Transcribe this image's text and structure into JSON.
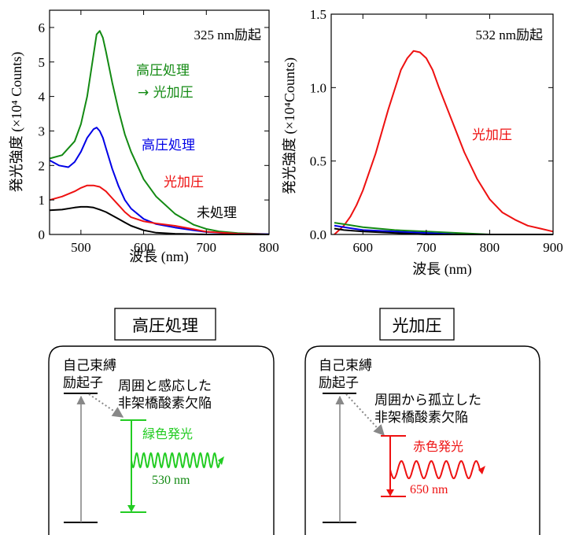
{
  "colors": {
    "green": "#138a13",
    "blue": "#0000e6",
    "red": "#ee1111",
    "black": "#000000",
    "bright_green": "#22cc22",
    "gray": "#888888"
  },
  "chart_data": [
    {
      "type": "line",
      "annotation": "325 nm励起",
      "xlabel": "波長 (nm)",
      "ylabel": "発光強度 (×10⁴ Counts)",
      "xlim": [
        450,
        800
      ],
      "ylim": [
        0,
        6.5
      ],
      "xticks": [
        500,
        600,
        700,
        800
      ],
      "yticks": [
        0,
        1,
        2,
        3,
        4,
        5,
        6
      ],
      "series": [
        {
          "name": "高圧処理 → 光加圧",
          "color": "#138a13",
          "x": [
            450,
            470,
            490,
            500,
            510,
            520,
            525,
            530,
            535,
            540,
            550,
            560,
            570,
            580,
            600,
            620,
            650,
            680,
            700,
            720,
            750,
            780,
            800
          ],
          "y": [
            2.2,
            2.3,
            2.7,
            3.2,
            4.0,
            5.2,
            5.8,
            5.9,
            5.7,
            5.3,
            4.4,
            3.6,
            2.9,
            2.4,
            1.6,
            1.1,
            0.6,
            0.28,
            0.16,
            0.09,
            0.04,
            0.02,
            0.01
          ]
        },
        {
          "name": "高圧処理",
          "color": "#0000e6",
          "x": [
            450,
            465,
            480,
            490,
            500,
            510,
            520,
            525,
            530,
            535,
            540,
            550,
            560,
            570,
            580,
            600,
            620,
            650,
            680,
            700,
            750,
            800
          ],
          "y": [
            2.15,
            2.0,
            1.95,
            2.1,
            2.4,
            2.8,
            3.05,
            3.1,
            3.0,
            2.8,
            2.5,
            1.9,
            1.4,
            1.0,
            0.75,
            0.45,
            0.3,
            0.2,
            0.12,
            0.07,
            0.02,
            0.01
          ]
        },
        {
          "name": "光加圧",
          "color": "#ee1111",
          "x": [
            450,
            470,
            490,
            500,
            510,
            520,
            530,
            540,
            550,
            560,
            570,
            580,
            600,
            620,
            650,
            680,
            700,
            750,
            800
          ],
          "y": [
            1.0,
            1.1,
            1.25,
            1.35,
            1.42,
            1.42,
            1.38,
            1.25,
            1.05,
            0.85,
            0.65,
            0.5,
            0.38,
            0.32,
            0.25,
            0.15,
            0.08,
            0.02,
            0.0
          ]
        },
        {
          "name": "未処理",
          "color": "#000000",
          "x": [
            450,
            470,
            490,
            500,
            510,
            520,
            530,
            540,
            550,
            560,
            570,
            580,
            600,
            620,
            650,
            680,
            700,
            750,
            800
          ],
          "y": [
            0.7,
            0.72,
            0.78,
            0.8,
            0.8,
            0.78,
            0.72,
            0.65,
            0.55,
            0.45,
            0.35,
            0.25,
            0.12,
            0.05,
            0.02,
            0.01,
            0.0,
            0.0,
            0.0
          ]
        }
      ],
      "labels": [
        "高圧処理",
        "→ 光加圧",
        "高圧処理",
        "光加圧",
        "未処理"
      ]
    },
    {
      "type": "line",
      "annotation": "532 nm励起",
      "xlabel": "波長 (nm)",
      "ylabel": "発光強度 (×10⁴Counts)",
      "xlim": [
        550,
        900
      ],
      "ylim": [
        0,
        1.5
      ],
      "xticks": [
        600,
        700,
        800,
        900
      ],
      "yticks": [
        "0.0",
        "0.5",
        "1.0",
        "1.5"
      ],
      "series": [
        {
          "name": "光加圧",
          "color": "#ee1111",
          "x": [
            555,
            560,
            570,
            580,
            590,
            600,
            620,
            640,
            660,
            670,
            680,
            690,
            700,
            710,
            720,
            740,
            760,
            780,
            800,
            820,
            840,
            860,
            880,
            900
          ],
          "y": [
            0.0,
            0.02,
            0.06,
            0.12,
            0.2,
            0.3,
            0.55,
            0.85,
            1.12,
            1.2,
            1.25,
            1.24,
            1.2,
            1.12,
            1.0,
            0.78,
            0.56,
            0.38,
            0.24,
            0.15,
            0.1,
            0.06,
            0.04,
            0.02
          ]
        },
        {
          "name": "green",
          "color": "#138a13",
          "x": [
            555,
            570,
            600,
            650,
            700,
            750,
            800,
            900
          ],
          "y": [
            0.08,
            0.07,
            0.05,
            0.03,
            0.02,
            0.01,
            0.0,
            0.0
          ]
        },
        {
          "name": "blue",
          "color": "#0000e6",
          "x": [
            555,
            570,
            600,
            650,
            700,
            750,
            800,
            900
          ],
          "y": [
            0.06,
            0.05,
            0.03,
            0.02,
            0.01,
            0.0,
            0.0,
            0.0
          ]
        },
        {
          "name": "black",
          "color": "#000000",
          "x": [
            555,
            570,
            600,
            650,
            700,
            900
          ],
          "y": [
            0.04,
            0.03,
            0.02,
            0.01,
            0.0,
            0.0
          ]
        }
      ],
      "labels": [
        "光加圧"
      ]
    }
  ],
  "diagrams": {
    "left": {
      "title": "高圧処理",
      "exciton_line1": "自己束縛",
      "exciton_line2": "励起子",
      "defect_line1": "周囲と感応した",
      "defect_line2": "非架橋酸素欠陥",
      "emission": "緑色発光",
      "wavelength": "530 nm"
    },
    "right": {
      "title": "光加圧",
      "exciton_line1": "自己束縛",
      "exciton_line2": "励起子",
      "defect_line1": "周囲から孤立した",
      "defect_line2": "非架橋酸素欠陥",
      "emission": "赤色発光",
      "wavelength": "650 nm"
    }
  }
}
